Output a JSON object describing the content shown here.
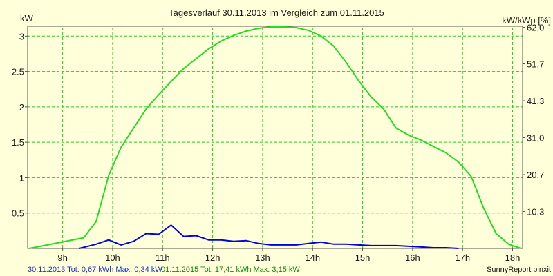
{
  "chart_data": {
    "type": "line",
    "title": "Tagesverlauf 30.11.2013 im Vergleich zum 01.11.2015",
    "ylabel_left": "kW",
    "ylabel_right": "kW/kWp [%]",
    "xlim": [
      8.3,
      18.2
    ],
    "ylim": [
      0,
      3.12
    ],
    "x_ticks": [
      9,
      10,
      11,
      12,
      13,
      14,
      15,
      16,
      17,
      18
    ],
    "x_tick_labels": [
      "9h",
      "10h",
      "11h",
      "12h",
      "13h",
      "14h",
      "15h",
      "16h",
      "17h",
      "18h"
    ],
    "y_ticks": [
      0.5,
      1,
      1.5,
      2,
      2.5,
      3
    ],
    "y_tick_labels": [
      "0.5",
      "1",
      "1.5",
      "2",
      "2.5",
      "3"
    ],
    "y2_ticks": [
      0.5216,
      1.0432,
      1.5648,
      2.0864,
      2.608,
      3.1245
    ],
    "y2_tick_labels": [
      "10,3",
      "20,7",
      "31,0",
      "41,3",
      "51,7",
      "62,0"
    ],
    "grid": true,
    "series": [
      {
        "name": "30.11.2013",
        "color": "#0000dd",
        "x": [
          9.33,
          9.67,
          9.92,
          10.17,
          10.42,
          10.67,
          10.92,
          11.17,
          11.42,
          11.67,
          11.92,
          12.17,
          12.42,
          12.67,
          12.92,
          13.17,
          13.42,
          13.67,
          13.92,
          14.17,
          14.42,
          14.67,
          14.92,
          15.17,
          15.42,
          15.67,
          15.92,
          16.17,
          16.42,
          16.67,
          16.92
        ],
        "y": [
          0.0,
          0.06,
          0.12,
          0.05,
          0.1,
          0.21,
          0.2,
          0.33,
          0.17,
          0.18,
          0.12,
          0.12,
          0.1,
          0.11,
          0.07,
          0.05,
          0.05,
          0.05,
          0.07,
          0.09,
          0.06,
          0.06,
          0.05,
          0.04,
          0.04,
          0.04,
          0.03,
          0.02,
          0.01,
          0.01,
          0.0
        ]
      },
      {
        "name": "01.11.2015",
        "color": "#22dd22",
        "x": [
          8.33,
          9.42,
          9.67,
          9.92,
          10.17,
          10.42,
          10.67,
          10.92,
          11.17,
          11.42,
          11.67,
          11.92,
          12.17,
          12.42,
          12.67,
          12.92,
          13.17,
          13.42,
          13.67,
          13.92,
          14.17,
          14.42,
          14.67,
          14.92,
          15.17,
          15.42,
          15.67,
          15.92,
          16.17,
          16.42,
          16.67,
          16.92,
          17.17,
          17.42,
          17.67,
          17.92,
          18.17
        ],
        "y": [
          0.0,
          0.15,
          0.38,
          1.03,
          1.43,
          1.7,
          1.97,
          2.17,
          2.36,
          2.54,
          2.68,
          2.82,
          2.93,
          3.01,
          3.07,
          3.11,
          3.13,
          3.13,
          3.12,
          3.08,
          3.0,
          2.86,
          2.63,
          2.37,
          2.14,
          1.97,
          1.7,
          1.6,
          1.53,
          1.44,
          1.35,
          1.22,
          1.02,
          0.57,
          0.21,
          0.06,
          0.0
        ]
      }
    ]
  },
  "footer": {
    "left_text": "30.11.2013 Tot: 0,67 kWh Max: 0,34 kW",
    "middle_text": "01.11.2015 Tot: 17,41 kWh Max: 3,15 kW",
    "right_text": "SunnyReport pinxit",
    "left_color": "#1a35c8",
    "middle_color": "#0a8a0a"
  },
  "colors": {
    "background": "#ffffd9",
    "grid": "#22cc22",
    "axis": "#555555"
  }
}
